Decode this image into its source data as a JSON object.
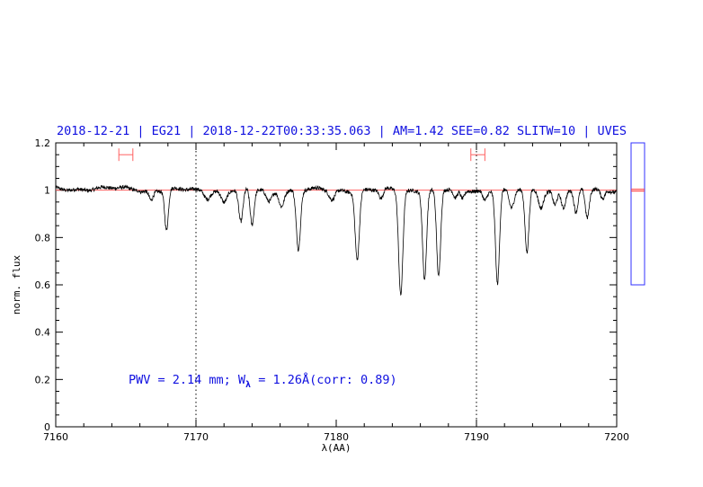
{
  "chart_data": {
    "type": "line",
    "title": "2018-12-21 | EG21 | 2018-12-22T00:33:35.063 | AM=1.42 SEE=0.82 SLITW=10 | UVES",
    "xlabel": "λ(AA)",
    "ylabel": "norm. flux",
    "xlim": [
      7160,
      7200
    ],
    "ylim": [
      0,
      1.2
    ],
    "x_ticks": [
      7160,
      7170,
      7180,
      7190,
      7200
    ],
    "x_tick_labels": [
      "7160",
      "7170",
      "7180",
      "7190",
      "7200"
    ],
    "y_ticks": [
      0,
      0.2,
      0.4,
      0.6,
      0.8,
      1,
      1.2
    ],
    "y_tick_labels": [
      "0",
      "0.2",
      "0.4",
      "0.6",
      "0.8",
      "1",
      "1.2"
    ],
    "grid": false,
    "vertical_dotted_lines": [
      7170,
      7190
    ],
    "continuum_level": 1.0,
    "annotation": {
      "prefix": "PWV = 2.14 mm; W",
      "subscript": "λ",
      "suffix": " = 1.26Å(corr: 0.89)"
    },
    "ranges": [
      {
        "x1": 7164.5,
        "x2": 7165.5,
        "y": 1.15
      },
      {
        "x1": 7189.6,
        "x2": 7190.6,
        "y": 1.15
      }
    ],
    "absorption_lines": [
      {
        "x": 7167.9,
        "depth": 0.17,
        "width": 0.13
      },
      {
        "x": 7166.8,
        "depth": 0.04,
        "width": 0.15
      },
      {
        "x": 7170.8,
        "depth": 0.03,
        "width": 0.2
      },
      {
        "x": 7172.0,
        "depth": 0.05,
        "width": 0.2
      },
      {
        "x": 7173.2,
        "depth": 0.14,
        "width": 0.15
      },
      {
        "x": 7174.0,
        "depth": 0.15,
        "width": 0.14
      },
      {
        "x": 7175.2,
        "depth": 0.05,
        "width": 0.2
      },
      {
        "x": 7176.1,
        "depth": 0.06,
        "width": 0.18
      },
      {
        "x": 7177.3,
        "depth": 0.25,
        "width": 0.15
      },
      {
        "x": 7179.7,
        "depth": 0.04,
        "width": 0.2
      },
      {
        "x": 7181.5,
        "depth": 0.29,
        "width": 0.15
      },
      {
        "x": 7183.2,
        "depth": 0.04,
        "width": 0.15
      },
      {
        "x": 7184.6,
        "depth": 0.44,
        "width": 0.15
      },
      {
        "x": 7186.3,
        "depth": 0.37,
        "width": 0.14
      },
      {
        "x": 7187.3,
        "depth": 0.37,
        "width": 0.14
      },
      {
        "x": 7188.5,
        "depth": 0.04,
        "width": 0.15
      },
      {
        "x": 7189.0,
        "depth": 0.04,
        "width": 0.15
      },
      {
        "x": 7190.6,
        "depth": 0.04,
        "width": 0.15
      },
      {
        "x": 7191.5,
        "depth": 0.39,
        "width": 0.14
      },
      {
        "x": 7192.5,
        "depth": 0.08,
        "width": 0.18
      },
      {
        "x": 7193.6,
        "depth": 0.27,
        "width": 0.14
      },
      {
        "x": 7194.6,
        "depth": 0.07,
        "width": 0.18
      },
      {
        "x": 7195.6,
        "depth": 0.06,
        "width": 0.15
      },
      {
        "x": 7196.2,
        "depth": 0.07,
        "width": 0.15
      },
      {
        "x": 7197.1,
        "depth": 0.1,
        "width": 0.15
      },
      {
        "x": 7197.9,
        "depth": 0.12,
        "width": 0.14
      },
      {
        "x": 7199.0,
        "depth": 0.04,
        "width": 0.15
      }
    ],
    "noise_amplitude": 0.008,
    "side_box": {
      "ylim": [
        0,
        1.2
      ],
      "marker_y": 1.0,
      "box_range": [
        0.6,
        1.2
      ]
    },
    "colors": {
      "title": "#1010e0",
      "spectrum": "#000000",
      "continuum": "#ff6060",
      "range_marker": "#ff6060",
      "side_box_border": "#3030ff",
      "side_box_marker": "#ff3030"
    }
  }
}
